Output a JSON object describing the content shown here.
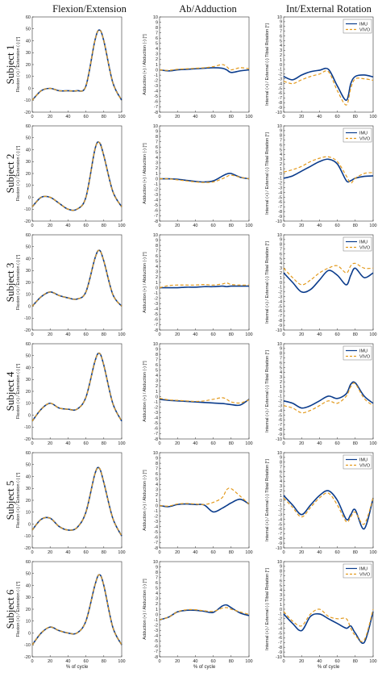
{
  "figure": {
    "column_titles": [
      "Flexion/Extension",
      "Ab/Adduction",
      "Int/External Rotation"
    ],
    "row_labels": [
      "Subject 1",
      "Subject 2",
      "Subject 3",
      "Subject 4",
      "Subject 5",
      "Subject 6"
    ],
    "xlabel": "% of cycle",
    "ylabels": [
      "Flexion (+) / Extension (-) [°]",
      "Adduction (+) / Abduction (-) [°]",
      "Internal (+) / External (-) Tibial Rotation [°]"
    ],
    "colors": {
      "IMU": "#0b3c8c",
      "VIVO": "#e39a1d"
    }
  },
  "chart_data": {
    "type": "line",
    "x": [
      0,
      10,
      20,
      30,
      40,
      50,
      60,
      70,
      75,
      80,
      90,
      100
    ],
    "xlim": [
      0,
      100
    ],
    "xticks": [
      0,
      20,
      40,
      60,
      80,
      100
    ],
    "columns": [
      {
        "ylim": [
          -20,
          60
        ],
        "yticks": [
          -20,
          -10,
          0,
          10,
          20,
          30,
          40,
          50,
          60
        ]
      },
      {
        "ylim": [
          -8,
          10
        ],
        "yticks": [
          -8,
          -7,
          -6,
          -5,
          -4,
          -3,
          -2,
          -1,
          0,
          1,
          2,
          3,
          4,
          5,
          6,
          7,
          8,
          9,
          10
        ]
      },
      {
        "ylim": [
          -10,
          10
        ],
        "yticks": [
          -10,
          -9,
          -8,
          -7,
          -6,
          -5,
          -4,
          -3,
          -2,
          -1,
          0,
          1,
          2,
          3,
          4,
          5,
          6,
          7,
          8,
          9,
          10
        ]
      }
    ],
    "panels": [
      [
        {
          "legend": false,
          "series": [
            {
              "name": "IMU",
              "values": [
                -10,
                -2,
                0,
                -2,
                -2,
                -2,
                2,
                40,
                49,
                40,
                5,
                -10
              ]
            },
            {
              "name": "VIVO",
              "values": [
                -10,
                -2,
                0,
                -2,
                -2,
                -2,
                2,
                40,
                49,
                40,
                5,
                -10
              ]
            }
          ]
        },
        {
          "legend": false,
          "series": [
            {
              "name": "IMU",
              "values": [
                0,
                -0.2,
                0,
                0.1,
                0.2,
                0.3,
                0.4,
                0.3,
                0,
                -0.5,
                -0.2,
                0
              ]
            },
            {
              "name": "VIVO",
              "values": [
                0,
                -0.1,
                0.1,
                0.2,
                0.3,
                0.4,
                0.6,
                1.0,
                0.6,
                0,
                0.4,
                0.2
              ]
            }
          ]
        },
        {
          "legend": true,
          "series": [
            {
              "name": "IMU",
              "values": [
                -2.5,
                -3.2,
                -2.2,
                -1.5,
                -1.2,
                -1.0,
                -4.5,
                -7.5,
                -4,
                -2.5,
                -2.2,
                -2.6
              ]
            },
            {
              "name": "VIVO",
              "values": [
                -3.5,
                -4.0,
                -3.2,
                -2.5,
                -2.0,
                -1.5,
                -5.5,
                -8.5,
                -5,
                -3,
                -3,
                -3.3
              ]
            }
          ]
        }
      ],
      [
        {
          "legend": false,
          "series": [
            {
              "name": "IMU",
              "values": [
                -8,
                0,
                0,
                -5,
                -10,
                -10,
                0,
                40,
                46,
                35,
                5,
                -8
              ]
            },
            {
              "name": "VIVO",
              "values": [
                -8,
                0,
                0,
                -5,
                -10,
                -10,
                0,
                40,
                46,
                35,
                5,
                -8
              ]
            }
          ]
        },
        {
          "legend": false,
          "series": [
            {
              "name": "IMU",
              "values": [
                0,
                0,
                -0.1,
                -0.3,
                -0.5,
                -0.6,
                -0.4,
                0.5,
                0.9,
                1.0,
                0.3,
                0
              ]
            },
            {
              "name": "VIVO",
              "values": [
                0,
                0,
                -0.2,
                -0.4,
                -0.6,
                -0.7,
                -0.6,
                0,
                0.4,
                0.7,
                0.3,
                0
              ]
            }
          ]
        },
        {
          "legend": true,
          "series": [
            {
              "name": "IMU",
              "values": [
                -1,
                -0.5,
                0.5,
                1.5,
                2.5,
                3.0,
                2.0,
                -1.5,
                -1.5,
                -1.0,
                -0.6,
                -0.5
              ]
            },
            {
              "name": "VIVO",
              "values": [
                0.3,
                0.8,
                1.5,
                2.5,
                3.2,
                3.5,
                2.5,
                -0.5,
                -2,
                -1,
                0,
                0.2
              ]
            }
          ]
        }
      ],
      [
        {
          "legend": false,
          "series": [
            {
              "name": "IMU",
              "values": [
                0,
                8,
                12,
                9,
                7,
                6,
                12,
                40,
                47,
                38,
                10,
                0
              ]
            },
            {
              "name": "VIVO",
              "values": [
                0,
                8,
                12,
                9,
                7,
                6,
                12,
                40,
                47,
                38,
                10,
                0
              ]
            }
          ]
        },
        {
          "legend": false,
          "series": [
            {
              "name": "IMU",
              "values": [
                0,
                0,
                0,
                0.1,
                0.1,
                0.2,
                0.2,
                0.3,
                0.2,
                0.3,
                0.3,
                0.3
              ]
            },
            {
              "name": "VIVO",
              "values": [
                0,
                0.4,
                0.5,
                0.5,
                0.5,
                0.6,
                0.5,
                0.7,
                0.9,
                0.6,
                0.5,
                0.5
              ]
            }
          ]
        },
        {
          "legend": true,
          "series": [
            {
              "name": "IMU",
              "values": [
                2,
                0,
                -2,
                -1.5,
                0.5,
                2.5,
                1.5,
                -0.5,
                1.5,
                3,
                1,
                2
              ]
            },
            {
              "name": "VIVO",
              "values": [
                3,
                1,
                -0.5,
                0.5,
                2,
                3,
                3.5,
                2,
                3.5,
                4,
                3,
                3
              ]
            }
          ]
        }
      ],
      [
        {
          "legend": false,
          "series": [
            {
              "name": "IMU",
              "values": [
                -5,
                5,
                10,
                6,
                5,
                5,
                15,
                45,
                52,
                42,
                10,
                -5
              ]
            },
            {
              "name": "VIVO",
              "values": [
                -5,
                5,
                10,
                6,
                5,
                5,
                15,
                45,
                52,
                42,
                10,
                -5
              ]
            }
          ]
        },
        {
          "legend": false,
          "series": [
            {
              "name": "IMU",
              "values": [
                -0.5,
                -0.7,
                -0.8,
                -0.9,
                -1.0,
                -1.1,
                -1.2,
                -1.3,
                -1.4,
                -1.5,
                -1.6,
                -0.5
              ]
            },
            {
              "name": "VIVO",
              "values": [
                -0.3,
                -0.6,
                -0.7,
                -0.8,
                -0.9,
                -0.8,
                -0.5,
                -0.2,
                -0.5,
                -1.0,
                -1.2,
                -0.6
              ]
            }
          ]
        },
        {
          "legend": true,
          "series": [
            {
              "name": "IMU",
              "values": [
                -2,
                -2.5,
                -3.5,
                -3,
                -2,
                -1,
                -1.5,
                -0.5,
                1.5,
                1.8,
                -1,
                -2.5
              ]
            },
            {
              "name": "VIVO",
              "values": [
                -3,
                -3.5,
                -4.5,
                -4,
                -3,
                -2,
                -2.5,
                -1,
                1,
                1.6,
                -1.5,
                -3
              ]
            }
          ]
        }
      ],
      [
        {
          "legend": false,
          "series": [
            {
              "name": "IMU",
              "values": [
                -5,
                4,
                5,
                -2,
                -5,
                -3,
                10,
                42,
                47,
                35,
                5,
                -10
              ]
            },
            {
              "name": "VIVO",
              "values": [
                -5,
                4,
                5,
                -2,
                -5,
                -3,
                10,
                42,
                47,
                35,
                5,
                -10
              ]
            }
          ]
        },
        {
          "legend": false,
          "series": [
            {
              "name": "IMU",
              "values": [
                0,
                -0.2,
                0.2,
                0.3,
                0.2,
                0.1,
                -1.2,
                -0.5,
                0,
                0.5,
                1.2,
                0.3
              ]
            },
            {
              "name": "VIVO",
              "values": [
                0,
                -0.1,
                0.3,
                0.4,
                0.3,
                0.2,
                0.6,
                1.5,
                3,
                3.2,
                1.8,
                0.3
              ]
            }
          ]
        },
        {
          "legend": true,
          "series": [
            {
              "name": "IMU",
              "values": [
                1,
                -1,
                -3,
                -1,
                1,
                2,
                0,
                -4,
                -3,
                -2,
                -6,
                0.5
              ]
            },
            {
              "name": "VIVO",
              "values": [
                0.5,
                -1.5,
                -3.5,
                -1.5,
                0.5,
                1.5,
                -1,
                -4.5,
                -3.5,
                -2.5,
                -5,
                0.5
              ]
            }
          ]
        }
      ],
      [
        {
          "legend": false,
          "series": [
            {
              "name": "IMU",
              "values": [
                -10,
                0,
                5,
                2,
                0,
                0,
                10,
                40,
                49,
                40,
                5,
                -10
              ]
            },
            {
              "name": "VIVO",
              "values": [
                -10,
                0,
                5,
                2,
                0,
                0,
                10,
                40,
                49,
                40,
                5,
                -10
              ]
            }
          ]
        },
        {
          "legend": false,
          "series": [
            {
              "name": "IMU",
              "values": [
                -1,
                -0.5,
                0.5,
                0.8,
                0.8,
                0.6,
                0.4,
                1.6,
                1.8,
                1.3,
                0.3,
                -0.2
              ]
            },
            {
              "name": "VIVO",
              "values": [
                -1,
                -0.5,
                0.5,
                0.9,
                0.9,
                0.7,
                0.6,
                1.2,
                1.3,
                1.0,
                0.5,
                0
              ]
            }
          ]
        },
        {
          "legend": true,
          "series": [
            {
              "name": "IMU",
              "values": [
                -1,
                -3,
                -4.5,
                -1.5,
                -1,
                -2,
                -3,
                -4,
                -3.5,
                -5,
                -7,
                -0.5
              ]
            },
            {
              "name": "VIVO",
              "values": [
                -0.5,
                -2.5,
                -3.5,
                -1,
                0,
                -1.5,
                -2,
                -2,
                -4,
                -5.5,
                -6.5,
                0
              ]
            }
          ]
        }
      ]
    ]
  }
}
